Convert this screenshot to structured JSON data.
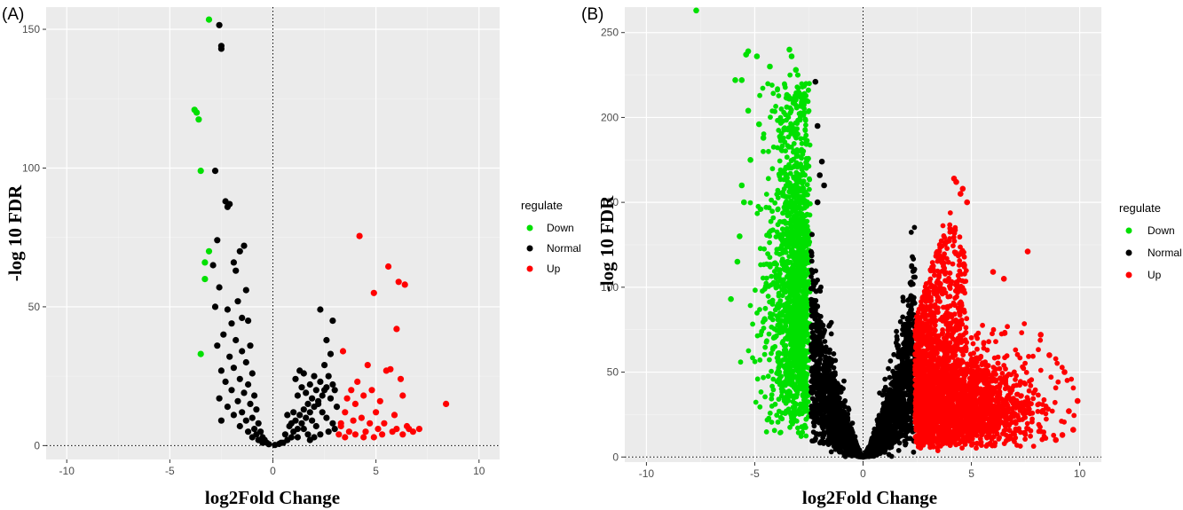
{
  "chart_data": [
    {
      "type": "scatter",
      "panel_label": "(A)",
      "xlabel": "log2Fold Change",
      "ylabel": "-log 10 FDR",
      "xlim": [
        -11,
        11
      ],
      "ylim": [
        -5,
        158
      ],
      "x_ticks": [
        -10,
        -5,
        0,
        5,
        10
      ],
      "y_ticks": [
        0,
        50,
        100,
        150
      ],
      "vline_x": 0,
      "hline_y": 0,
      "grid": true,
      "legend": {
        "title": "regulate",
        "placement": "right",
        "entries": [
          {
            "label": "Down",
            "color": "#00e000"
          },
          {
            "label": "Normal",
            "color": "#000000"
          },
          {
            "label": "Up",
            "color": "#ff0000"
          }
        ]
      },
      "series": [
        {
          "name": "Down",
          "color": "#00e000",
          "points": [
            [
              -3.1,
              153.5
            ],
            [
              -3.8,
              121
            ],
            [
              -3.7,
              120
            ],
            [
              -3.6,
              117.5
            ],
            [
              -3.5,
              99
            ],
            [
              -3.1,
              70
            ],
            [
              -3.3,
              66
            ],
            [
              -3.3,
              60
            ],
            [
              -3.5,
              33
            ]
          ]
        },
        {
          "name": "Normal",
          "color": "#000000",
          "points": [
            [
              -2.6,
              151.5
            ],
            [
              -2.5,
              144
            ],
            [
              -2.5,
              143
            ],
            [
              -2.8,
              99
            ],
            [
              -2.3,
              88
            ],
            [
              -2.2,
              86
            ],
            [
              -2.1,
              87
            ],
            [
              -2.7,
              74
            ],
            [
              -1.4,
              72
            ],
            [
              -1.6,
              70
            ],
            [
              -1.9,
              66
            ],
            [
              -2.9,
              65
            ],
            [
              -1.8,
              63
            ],
            [
              -2.6,
              57
            ],
            [
              -1.3,
              56
            ],
            [
              -1.7,
              52
            ],
            [
              -2.2,
              49
            ],
            [
              -2.8,
              50
            ],
            [
              -1.5,
              46
            ],
            [
              -2.0,
              44
            ],
            [
              -1.2,
              45
            ],
            [
              -2.4,
              40
            ],
            [
              -1.8,
              38
            ],
            [
              -1.1,
              36
            ],
            [
              -2.7,
              36
            ],
            [
              -1.5,
              34
            ],
            [
              -2.1,
              32
            ],
            [
              -1.3,
              30
            ],
            [
              -1.9,
              28
            ],
            [
              -2.5,
              27
            ],
            [
              -1.0,
              26
            ],
            [
              -1.6,
              24
            ],
            [
              -2.3,
              23
            ],
            [
              -1.2,
              22
            ],
            [
              -2.0,
              20
            ],
            [
              -1.4,
              19
            ],
            [
              -0.9,
              18
            ],
            [
              -2.6,
              17
            ],
            [
              -1.7,
              16
            ],
            [
              -1.1,
              15
            ],
            [
              -2.2,
              14
            ],
            [
              -0.8,
              13
            ],
            [
              -1.5,
              12
            ],
            [
              -1.9,
              11
            ],
            [
              -1.0,
              10
            ],
            [
              -2.5,
              9
            ],
            [
              -1.3,
              9
            ],
            [
              -0.7,
              8
            ],
            [
              -1.6,
              7
            ],
            [
              -0.9,
              6
            ],
            [
              -1.2,
              5
            ],
            [
              -0.6,
              5
            ],
            [
              -0.8,
              4
            ],
            [
              -0.5,
              3
            ],
            [
              -1.0,
              3
            ],
            [
              -0.4,
              2
            ],
            [
              -0.7,
              2
            ],
            [
              -0.3,
              1
            ],
            [
              -0.2,
              0.5
            ],
            [
              -0.5,
              1
            ],
            [
              0.1,
              0.2
            ],
            [
              0.3,
              0.6
            ],
            [
              0.5,
              1
            ],
            [
              0.7,
              2
            ],
            [
              0.9,
              3
            ],
            [
              0.6,
              4
            ],
            [
              1.0,
              5
            ],
            [
              1.2,
              6
            ],
            [
              0.8,
              7
            ],
            [
              1.4,
              8
            ],
            [
              1.1,
              9
            ],
            [
              1.6,
              10
            ],
            [
              1.3,
              11
            ],
            [
              1.8,
              12
            ],
            [
              1.5,
              13
            ],
            [
              2.0,
              14
            ],
            [
              1.7,
              15
            ],
            [
              2.2,
              16
            ],
            [
              1.9,
              17
            ],
            [
              1.2,
              18
            ],
            [
              2.4,
              18
            ],
            [
              1.6,
              19
            ],
            [
              2.1,
              20
            ],
            [
              1.4,
              21
            ],
            [
              2.6,
              21
            ],
            [
              1.8,
              22
            ],
            [
              2.3,
              23
            ],
            [
              1.1,
              24
            ],
            [
              2.0,
              25
            ],
            [
              1.5,
              26
            ],
            [
              1.3,
              27
            ],
            [
              2.7,
              25
            ],
            [
              2.9,
              22
            ],
            [
              3.0,
              20
            ],
            [
              2.5,
              20
            ],
            [
              2.8,
              17
            ],
            [
              2.2,
              15
            ],
            [
              2.4,
              12
            ],
            [
              2.6,
              10
            ],
            [
              2.9,
              8
            ],
            [
              3.0,
              6
            ],
            [
              2.7,
              5
            ],
            [
              2.3,
              4
            ],
            [
              2.0,
              3
            ],
            [
              1.8,
              2
            ],
            [
              2.3,
              49
            ],
            [
              2.9,
              45
            ],
            [
              2.6,
              38
            ],
            [
              2.8,
              33
            ],
            [
              2.5,
              29
            ],
            [
              1.0,
              12
            ],
            [
              0.7,
              11
            ],
            [
              1.9,
              9
            ],
            [
              1.5,
              6
            ],
            [
              0.9,
              8
            ],
            [
              3.1,
              14
            ],
            [
              2.1,
              7
            ],
            [
              1.2,
              3
            ],
            [
              0.4,
              1
            ],
            [
              1.7,
              4
            ]
          ]
        },
        {
          "name": "Up",
          "color": "#ff0000",
          "points": [
            [
              4.2,
              75.5
            ],
            [
              5.6,
              64.5
            ],
            [
              6.1,
              59
            ],
            [
              6.4,
              58
            ],
            [
              4.9,
              55
            ],
            [
              6.0,
              42
            ],
            [
              3.4,
              34
            ],
            [
              4.6,
              29
            ],
            [
              5.7,
              27.5
            ],
            [
              5.5,
              27
            ],
            [
              6.2,
              24
            ],
            [
              4.1,
              23
            ],
            [
              3.8,
              20
            ],
            [
              4.8,
              20
            ],
            [
              4.4,
              18
            ],
            [
              6.3,
              18
            ],
            [
              3.6,
              17
            ],
            [
              5.2,
              16
            ],
            [
              4.0,
              15
            ],
            [
              5.0,
              12
            ],
            [
              3.5,
              12
            ],
            [
              5.9,
              11
            ],
            [
              4.3,
              10
            ],
            [
              3.9,
              9
            ],
            [
              4.7,
              8
            ],
            [
              5.4,
              8
            ],
            [
              6.5,
              7
            ],
            [
              3.3,
              8
            ],
            [
              5.1,
              6
            ],
            [
              6.0,
              6
            ],
            [
              7.1,
              6
            ],
            [
              3.7,
              5
            ],
            [
              4.5,
              5
            ],
            [
              5.8,
              5
            ],
            [
              6.8,
              5
            ],
            [
              3.2,
              4
            ],
            [
              4.0,
              4
            ],
            [
              5.3,
              4
            ],
            [
              6.3,
              4
            ],
            [
              3.5,
              3
            ],
            [
              4.4,
              3
            ],
            [
              4.9,
              3
            ],
            [
              8.4,
              15
            ],
            [
              3.3,
              7
            ],
            [
              6.6,
              6
            ]
          ]
        }
      ]
    },
    {
      "type": "scatter",
      "panel_label": "(B)",
      "xlabel": "log2Fold Change",
      "ylabel": "-log 10 FDR",
      "xlim": [
        -11,
        11
      ],
      "ylim": [
        -3,
        265
      ],
      "x_ticks": [
        -10,
        -5,
        0,
        5,
        10
      ],
      "y_ticks": [
        0,
        50,
        100,
        150,
        200,
        250
      ],
      "vline_x": 0,
      "hline_y": 0,
      "grid": true,
      "legend": {
        "title": "regulate",
        "placement": "right",
        "entries": [
          {
            "label": "Down",
            "color": "#00e000"
          },
          {
            "label": "Normal",
            "color": "#000000"
          },
          {
            "label": "Up",
            "color": "#ff0000"
          }
        ]
      },
      "series": [
        {
          "name": "Down",
          "color": "#00e000",
          "points": [
            [
              -7.7,
              263
            ],
            [
              -6.1,
              93
            ],
            [
              -5.9,
              222
            ],
            [
              -5.6,
              222
            ],
            [
              -5.4,
              237
            ],
            [
              -5.3,
              239
            ],
            [
              -4.9,
              236
            ],
            [
              -4.3,
              230
            ],
            [
              -3.4,
              240
            ],
            [
              -3.3,
              236
            ],
            [
              -3.1,
              228
            ],
            [
              -3.0,
              213
            ],
            [
              -5.3,
              204
            ],
            [
              -5.6,
              160
            ],
            [
              -5.7,
              130
            ],
            [
              -5.8,
              115
            ],
            [
              -5.5,
              150
            ],
            [
              -5.2,
              175
            ],
            [
              -4.8,
              196
            ],
            [
              -4.6,
              188
            ]
          ]
        },
        {
          "name": "Normal",
          "color": "#000000",
          "points": [
            [
              -2.2,
              221
            ],
            [
              -2.1,
              195
            ],
            [
              -1.9,
              174
            ],
            [
              -2.0,
              166
            ],
            [
              -1.8,
              160
            ],
            [
              -2.1,
              150
            ]
          ]
        },
        {
          "name": "Up",
          "color": "#ff0000",
          "points": [
            [
              4.2,
              164
            ],
            [
              4.3,
              162
            ],
            [
              4.6,
              158
            ],
            [
              4.5,
              155
            ],
            [
              7.6,
              121
            ],
            [
              4.8,
              150
            ],
            [
              6.5,
              105
            ],
            [
              6.0,
              109
            ],
            [
              8.2,
              72
            ],
            [
              9.9,
              33
            ],
            [
              9.5,
              27
            ],
            [
              9.7,
              16
            ],
            [
              9.2,
              13
            ],
            [
              8.9,
              10
            ],
            [
              8.6,
              60
            ],
            [
              9.3,
              50
            ]
          ]
        }
      ],
      "clouds": [
        {
          "series": "Down",
          "color": "#00e000",
          "count": 1600,
          "x_range": [
            -6.0,
            -2.4
          ],
          "y_center": [
            -4.0,
            120
          ],
          "y_spread": 60,
          "y_max": 225,
          "y_min": 12
        },
        {
          "series": "Normal",
          "color": "#000000",
          "count": 2600,
          "x_range": [
            -2.4,
            2.4
          ],
          "y_center": [
            0,
            20
          ],
          "y_spread": 20,
          "y_max": 140,
          "y_min": 0
        },
        {
          "series": "Up",
          "color": "#ff0000",
          "count": 2600,
          "x_range": [
            2.4,
            9.8
          ],
          "y_center": [
            4.5,
            30
          ],
          "y_spread": 25,
          "y_max": 150,
          "y_min": 2
        }
      ]
    }
  ]
}
